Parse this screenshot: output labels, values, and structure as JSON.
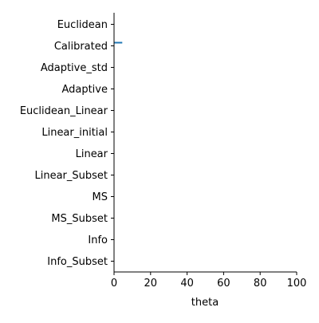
{
  "chart_data": {
    "type": "scatter",
    "title": "",
    "xlabel": "theta",
    "ylabel": "",
    "xlim": [
      0,
      100
    ],
    "x_ticks": [
      0,
      20,
      40,
      60,
      80,
      100
    ],
    "categories": [
      "Euclidean",
      "Calibrated",
      "Adaptive_std",
      "Adaptive",
      "Euclidean_Linear",
      "Linear_initial",
      "Linear",
      "Linear_Subset",
      "MS",
      "MS_Subset",
      "Info",
      "Info_Subset"
    ],
    "series": [
      {
        "color": "#1f77b4",
        "points": [
          {
            "category": "Calibrated",
            "x_start": 0,
            "x_end": 4.5
          }
        ]
      }
    ],
    "grid": false,
    "legend": "none"
  }
}
